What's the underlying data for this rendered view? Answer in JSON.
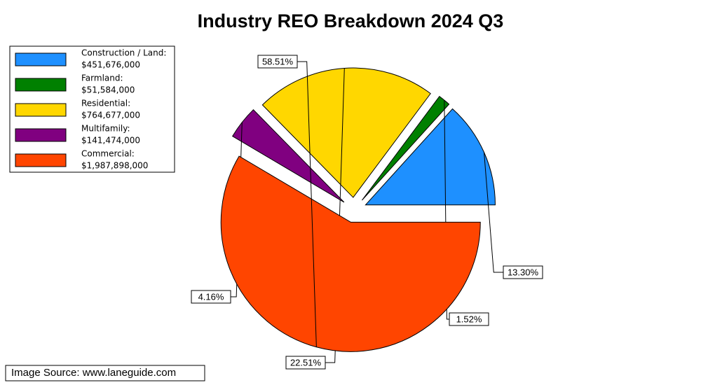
{
  "chart_data": {
    "type": "pie",
    "title": "Industry REO Breakdown 2024 Q3",
    "categories": [
      "Construction / Land:",
      "Farmland:",
      "Residential:",
      "Multifamily:",
      "Commercial:"
    ],
    "amounts": [
      "$451,676,000",
      "$51,584,000",
      "$764,677,000",
      "$141,474,000",
      "$1,987,898,000"
    ],
    "values": [
      13.3,
      1.52,
      22.51,
      4.16,
      58.51
    ],
    "value_labels": [
      "13.30%",
      "1.52%",
      "22.51%",
      "4.16%",
      "58.51%"
    ],
    "colors": [
      "#1e90ff",
      "#008000",
      "#ffd700",
      "#800080",
      "#ff4500"
    ],
    "source": "Image Source: www.laneguide.com"
  }
}
